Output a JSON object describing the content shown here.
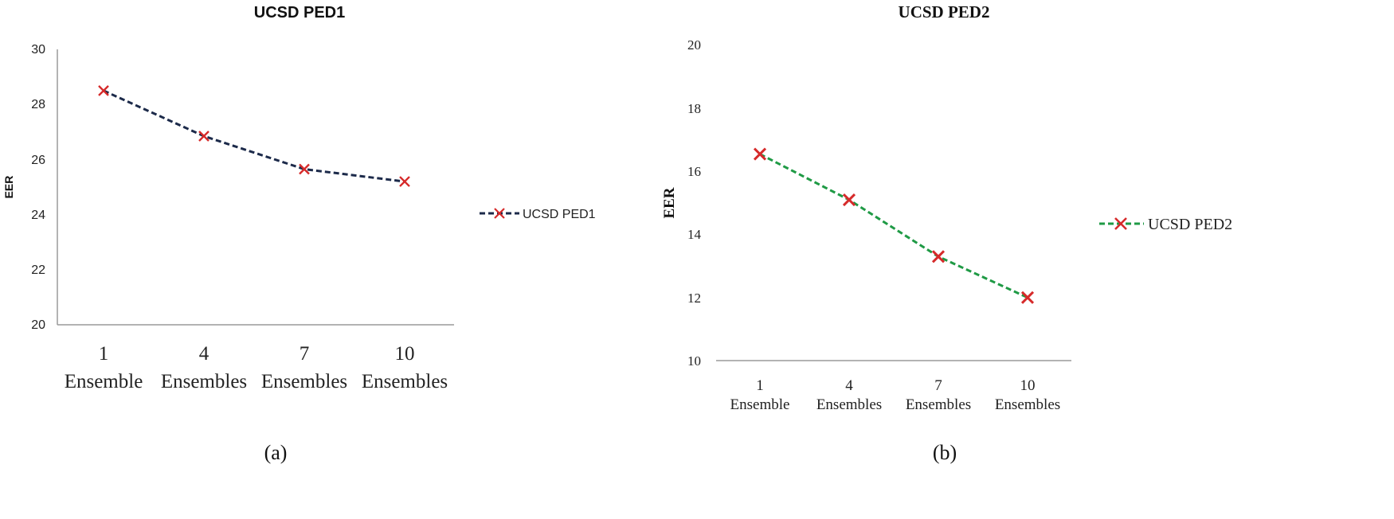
{
  "chart_data": [
    {
      "type": "line",
      "title": "UCSD PED1",
      "ylabel": "EER",
      "xlabel": "",
      "ylim": [
        20,
        30
      ],
      "yticks": [
        "20",
        "22",
        "24",
        "26",
        "28",
        "30"
      ],
      "categories": [
        {
          "num": "1",
          "word": "Ensemble"
        },
        {
          "num": "4",
          "word": "Ensembles"
        },
        {
          "num": "7",
          "word": "Ensembles"
        },
        {
          "num": "10",
          "word": "Ensembles"
        }
      ],
      "series": [
        {
          "name": "UCSD PED1",
          "values": [
            28.5,
            26.85,
            25.65,
            25.2
          ],
          "line_color": "#1c2a4a",
          "marker_color": "#d62a2a"
        }
      ],
      "legend_position": "right",
      "caption": "(a)"
    },
    {
      "type": "line",
      "title": "UCSD PED2",
      "ylabel": "EER",
      "xlabel": "",
      "ylim": [
        10,
        20
      ],
      "yticks": [
        "10",
        "12",
        "14",
        "16",
        "18",
        "20"
      ],
      "categories": [
        {
          "num": "1",
          "word": "Ensemble"
        },
        {
          "num": "4",
          "word": "Ensembles"
        },
        {
          "num": "7",
          "word": "Ensembles"
        },
        {
          "num": "10",
          "word": "Ensembles"
        }
      ],
      "series": [
        {
          "name": "UCSD PED2",
          "values": [
            16.55,
            15.1,
            13.3,
            12.0
          ],
          "line_color": "#1f9a45",
          "marker_color": "#d62a2a"
        }
      ],
      "legend_position": "right",
      "caption": "(b)"
    }
  ]
}
